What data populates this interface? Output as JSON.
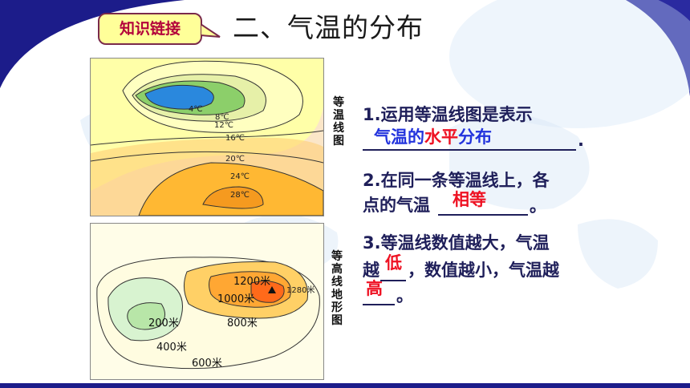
{
  "badge": "知识链接",
  "title": "二、气温的分布",
  "map_top": {
    "side_label": [
      "等",
      "温",
      "线",
      "图"
    ],
    "isotherms": [
      "4℃",
      "8℃",
      "12℃",
      "16℃",
      "20℃",
      "24℃",
      "28℃"
    ]
  },
  "map_bottom": {
    "side_label": [
      "等",
      "高",
      "线",
      "地",
      "形",
      "图"
    ],
    "contours": [
      "1200米",
      "1280米",
      "1000米",
      "800米",
      "200米",
      "400米",
      "600米"
    ]
  },
  "questions": {
    "q1_prefix": "1.运用等温线图是表示",
    "q1_answer_a": "气温的",
    "q1_answer_b": "水平",
    "q1_answer_c": "分布",
    "q1_end": ".",
    "q2_line1": "2.在同一条等温线上，各",
    "q2_prefix": "点的气温",
    "q2_answer": "相等",
    "q2_end": "。",
    "q3_line1": "3.等温线数值越大，气温",
    "q3_prefix": "越",
    "q3_answer1": "低",
    "q3_mid": "，数值越小，气温越",
    "q3_answer2": "高",
    "q3_end": "。"
  },
  "colors": {
    "accent_blue": "#1a1a8c",
    "badge_fill": "#ffff99",
    "answer_blue": "#2233dd",
    "answer_red": "#ee1122"
  }
}
